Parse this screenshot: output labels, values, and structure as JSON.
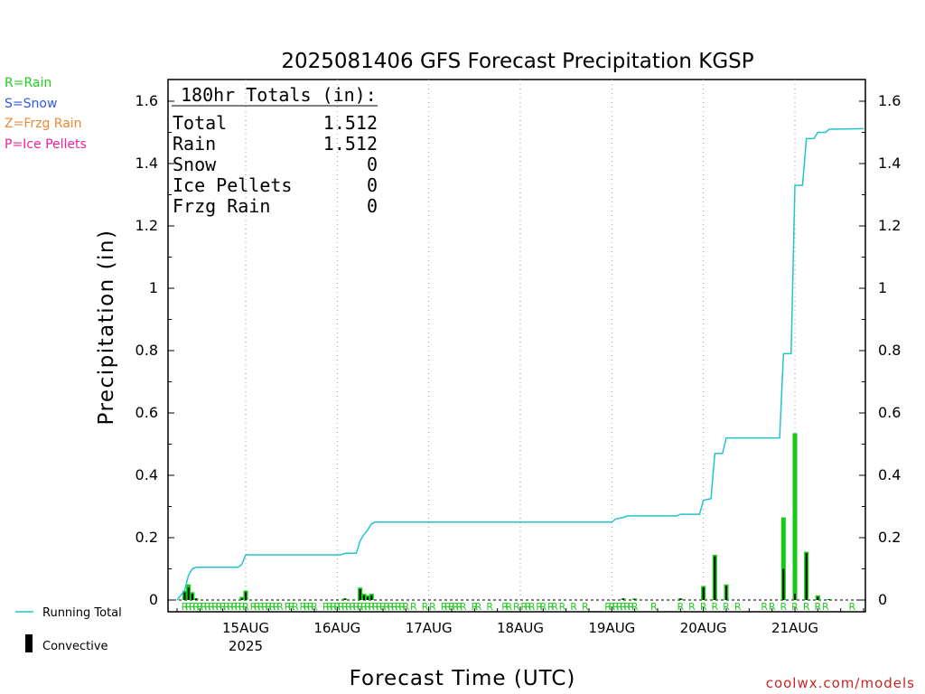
{
  "chart_data": {
    "type": "bar",
    "title": "2025081406 GFS Forecast Precipitation KGSP",
    "ylabel": "Precipitation (in)",
    "xlabel": "Forecast Time (UTC)",
    "ylim": [
      0,
      1.65
    ],
    "yticks": [
      "0",
      "0.2",
      "0.4",
      "0.6",
      "0.8",
      "1",
      "1.2",
      "1.4",
      "1.6"
    ],
    "ytick_values": [
      0,
      0.2,
      0.4,
      0.6,
      0.8,
      1.0,
      1.2,
      1.4,
      1.6
    ],
    "x_unit": "hours from 2025081406",
    "xlim": [
      0,
      180
    ],
    "xticks": [
      {
        "label": "15AUG",
        "hour": 18,
        "sub": "2025"
      },
      {
        "label": "16AUG",
        "hour": 42,
        "sub": ""
      },
      {
        "label": "17AUG",
        "hour": 66,
        "sub": ""
      },
      {
        "label": "18AUG",
        "hour": 90,
        "sub": ""
      },
      {
        "label": "19AUG",
        "hour": 114,
        "sub": ""
      },
      {
        "label": "20AUG",
        "hour": 138,
        "sub": ""
      },
      {
        "label": "21AUG",
        "hour": 162,
        "sub": ""
      }
    ],
    "grid": true,
    "legend_left": [
      {
        "text": "R=Rain",
        "color": "#22cc22"
      },
      {
        "text": "S=Snow",
        "color": "#3355ee"
      },
      {
        "text": "Z=Frzg Rain",
        "color": "#ee8833"
      },
      {
        "text": "P=Ice Pellets",
        "color": "#ee2299"
      }
    ],
    "legend_bottom": {
      "running_total": "Running Total",
      "convective": "Convective"
    },
    "totals": {
      "heading": "180hr Totals (in):",
      "rows": [
        {
          "label": "Total",
          "value": "1.512"
        },
        {
          "label": "Rain",
          "value": "1.512"
        },
        {
          "label": "Snow",
          "value": "0"
        },
        {
          "label": "Ice Pellets",
          "value": "0"
        },
        {
          "label": "Frzg Rain",
          "value": "0"
        }
      ]
    },
    "bars": [
      {
        "hour": 2,
        "precip": 0.03,
        "convective": 0.025
      },
      {
        "hour": 3,
        "precip": 0.05,
        "convective": 0.04
      },
      {
        "hour": 4,
        "precip": 0.025,
        "convective": 0.02
      },
      {
        "hour": 5,
        "precip": 0.005,
        "convective": 0.005
      },
      {
        "hour": 17,
        "precip": 0.01,
        "convective": 0.005
      },
      {
        "hour": 18,
        "precip": 0.03,
        "convective": 0.025
      },
      {
        "hour": 44,
        "precip": 0.005,
        "convective": 0.005
      },
      {
        "hour": 48,
        "precip": 0.04,
        "convective": 0.035
      },
      {
        "hour": 49,
        "precip": 0.02,
        "convective": 0.015
      },
      {
        "hour": 50,
        "precip": 0.015,
        "convective": 0.01
      },
      {
        "hour": 51,
        "precip": 0.02,
        "convective": 0.015
      },
      {
        "hour": 117,
        "precip": 0.005,
        "convective": 0.005
      },
      {
        "hour": 120,
        "precip": 0.005,
        "convective": 0.003
      },
      {
        "hour": 132,
        "precip": 0.005,
        "convective": 0.005
      },
      {
        "hour": 138,
        "precip": 0.045,
        "convective": 0.04
      },
      {
        "hour": 141,
        "precip": 0.145,
        "convective": 0.14
      },
      {
        "hour": 144,
        "precip": 0.05,
        "convective": 0.045
      },
      {
        "hour": 159,
        "precip": 0.265,
        "convective": 0.1
      },
      {
        "hour": 162,
        "precip": 0.535,
        "convective": 0.02
      },
      {
        "hour": 165,
        "precip": 0.155,
        "convective": 0.15
      },
      {
        "hour": 168,
        "precip": 0.015,
        "convective": 0.01
      },
      {
        "hour": 171,
        "precip": 0.003,
        "convective": 0.002
      }
    ],
    "running_total": [
      [
        0,
        0
      ],
      [
        2,
        0.03
      ],
      [
        3,
        0.08
      ],
      [
        4,
        0.1
      ],
      [
        5,
        0.105
      ],
      [
        16,
        0.105
      ],
      [
        17,
        0.115
      ],
      [
        18,
        0.145
      ],
      [
        43,
        0.145
      ],
      [
        44,
        0.15
      ],
      [
        47,
        0.15
      ],
      [
        48,
        0.19
      ],
      [
        49,
        0.21
      ],
      [
        50,
        0.225
      ],
      [
        51,
        0.245
      ],
      [
        52,
        0.25
      ],
      [
        114,
        0.25
      ],
      [
        115,
        0.26
      ],
      [
        117,
        0.265
      ],
      [
        118,
        0.27
      ],
      [
        131,
        0.27
      ],
      [
        132,
        0.275
      ],
      [
        137,
        0.275
      ],
      [
        138,
        0.32
      ],
      [
        140,
        0.325
      ],
      [
        141,
        0.47
      ],
      [
        143,
        0.47
      ],
      [
        144,
        0.52
      ],
      [
        158,
        0.52
      ],
      [
        159,
        0.79
      ],
      [
        161,
        0.79
      ],
      [
        162,
        1.33
      ],
      [
        164,
        1.33
      ],
      [
        165,
        1.48
      ],
      [
        167,
        1.48
      ],
      [
        168,
        1.5
      ],
      [
        170,
        1.5
      ],
      [
        171,
        1.51
      ],
      [
        180,
        1.512
      ]
    ],
    "ptype_hours": [
      2,
      3,
      4,
      5,
      6,
      7,
      8,
      9,
      10,
      11,
      12,
      13,
      14,
      15,
      16,
      17,
      18,
      20,
      21,
      22,
      23,
      24,
      25,
      26,
      27,
      29,
      30,
      31,
      33,
      34,
      35,
      36,
      39,
      40,
      41,
      42,
      43,
      44,
      45,
      46,
      47,
      48,
      49,
      50,
      51,
      52,
      53,
      54,
      55,
      56,
      57,
      58,
      59,
      60,
      62,
      65,
      67,
      70,
      71,
      72,
      73,
      74,
      75,
      78,
      79,
      82,
      86,
      87,
      89,
      91,
      92,
      93,
      95,
      96,
      98,
      99,
      101,
      104,
      107,
      113,
      114,
      115,
      116,
      117,
      118,
      119,
      120,
      125,
      132,
      135,
      138,
      141,
      144,
      147,
      154,
      156,
      159,
      162,
      165,
      168,
      170,
      177
    ],
    "ptype_letter": "R",
    "footer_credit": "coolwx.com/models"
  }
}
